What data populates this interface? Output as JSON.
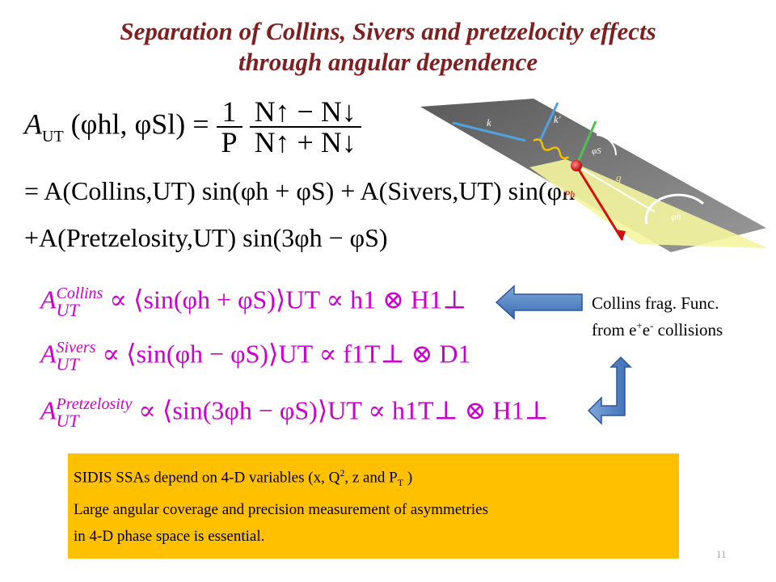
{
  "title": {
    "line1": "Separation of Collins, Sivers and pretzelocity effects",
    "line2": "through angular dependence"
  },
  "equations": {
    "def_lhs": "A",
    "def_lhs_sub": "UT",
    "def_args": "(φhl, φSl) =",
    "def_frac1_num": "1",
    "def_frac1_den": "P",
    "def_frac2_num": "N↑ − N↓",
    "def_frac2_den": "N↑ + N↓",
    "line2": "= A(Collins,UT) sin(φh + φS) + A(Sivers,UT) sin(φh − φS)",
    "line3": "+A(Pretzelosity,UT) sin(3φh − φS)",
    "collins_label": "Collins",
    "sivers_label": "Sivers",
    "pretz_label": "Pretzelosity",
    "ut": "UT",
    "collins_rel": "∝ ⟨sin(φh + φS)⟩UT ∝ h1 ⊗ H1⊥",
    "sivers_rel": "∝ ⟨sin(φh − φS)⟩UT ∝ f1T⊥ ⊗ D1",
    "pretz_rel": "∝ ⟨sin(3φh − φS)⟩UT ∝ h1T⊥ ⊗ H1⊥"
  },
  "note": {
    "line1": "Collins frag. Func.",
    "line2_pre": "from e",
    "line2_sup1": "+",
    "line2_mid": "e",
    "line2_sup2": "-",
    "line2_post": " collisions"
  },
  "box": {
    "line1_a": "SIDIS SSAs depend on 4-D variables (x, Q",
    "line1_sup": "2",
    "line1_b": ", z and P",
    "line1_sub": "T",
    "line1_c": " )",
    "line2": "Large angular coverage and precision measurement of asymmetries",
    "line3": "in 4-D phase space is essential."
  },
  "diagram": {
    "k_label": "k",
    "kprime_label": "k'",
    "q_label": "q",
    "ph_label": "Ph",
    "phis_label": "φS",
    "phih_label": "φh"
  },
  "page_number": "11",
  "colors": {
    "title": "#7f1f1f",
    "magenta": "#cc00cc",
    "box": "#ffc000",
    "arrow": "#4f81bd"
  }
}
